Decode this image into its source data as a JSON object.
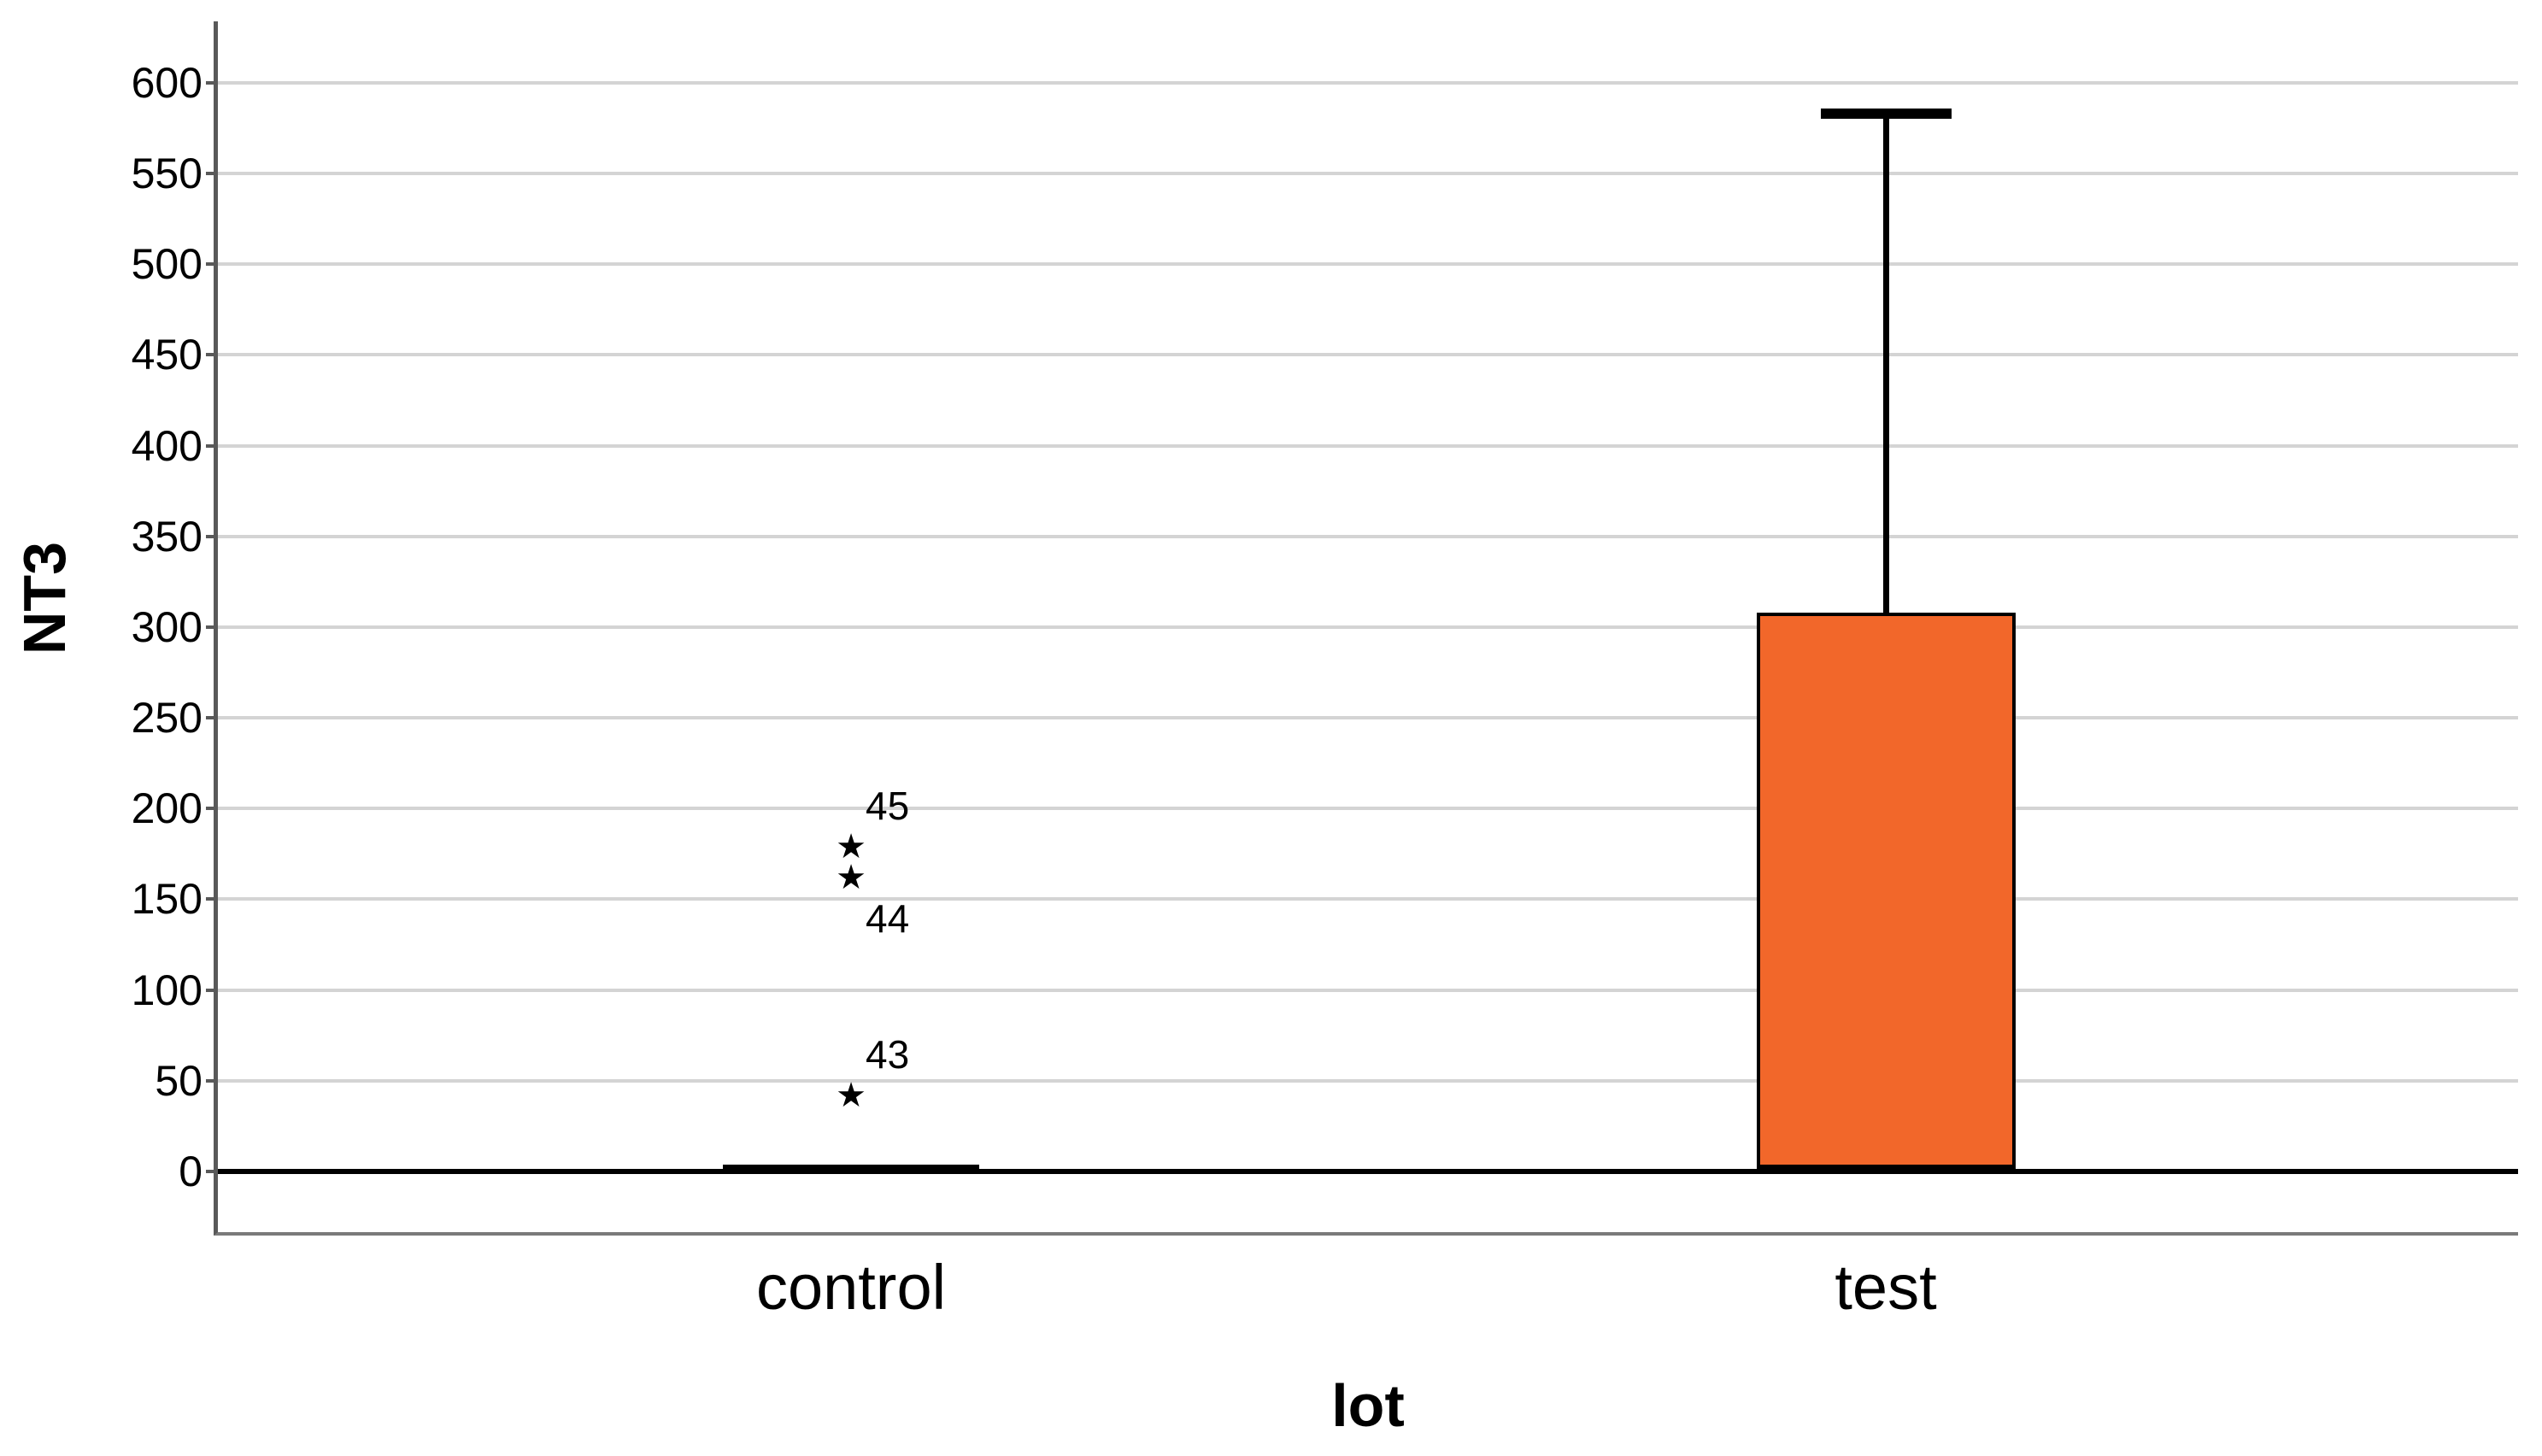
{
  "labels": {
    "y_axis_title": "NT3",
    "x_axis_title": "lot"
  },
  "colors": {
    "background": "#ffffff",
    "text": "#000000",
    "gridline": "#d4d4d4",
    "axis_line": "#595959",
    "plot_bottom_border": "#7a7a7a",
    "box_border": "#000000",
    "test_box_fill": "#F2672A",
    "control_box_fill": "#000000",
    "zero_line": "#000000"
  },
  "chart_data": {
    "type": "boxplot",
    "title": "",
    "xlabel": "lot",
    "ylabel": "NT3",
    "categories": [
      "control",
      "test"
    ],
    "y_axis": {
      "ticks": [
        0,
        50,
        100,
        150,
        200,
        250,
        300,
        350,
        400,
        450,
        500,
        550,
        600
      ],
      "tick_labels": [
        "0",
        "50",
        "100",
        "150",
        "200",
        "250",
        "300",
        "350",
        "400",
        "450",
        "500",
        "550",
        "600"
      ],
      "range_min": -33,
      "range_max": 634,
      "grid": true
    },
    "zero_line": true,
    "legend": "none",
    "series": [
      {
        "category": "control",
        "whisker_low": 0,
        "q1": 0,
        "median": 1,
        "q3": 2,
        "whisker_high": 2,
        "fill": "#000000",
        "collapsed_at_zero": true,
        "outliers": [
          {
            "case_label": "43",
            "value": 42,
            "marker": "star",
            "label_side": "above"
          },
          {
            "case_label": "44",
            "value": 162,
            "marker": "star",
            "label_side": "below"
          },
          {
            "case_label": "45",
            "value": 179,
            "marker": "star",
            "label_side": "above"
          }
        ]
      },
      {
        "category": "test",
        "whisker_low": 0,
        "q1": 0,
        "median": 1,
        "q3": 308,
        "whisker_high": 583,
        "fill": "#F2672A",
        "collapsed_at_zero": false,
        "outliers": []
      }
    ]
  }
}
